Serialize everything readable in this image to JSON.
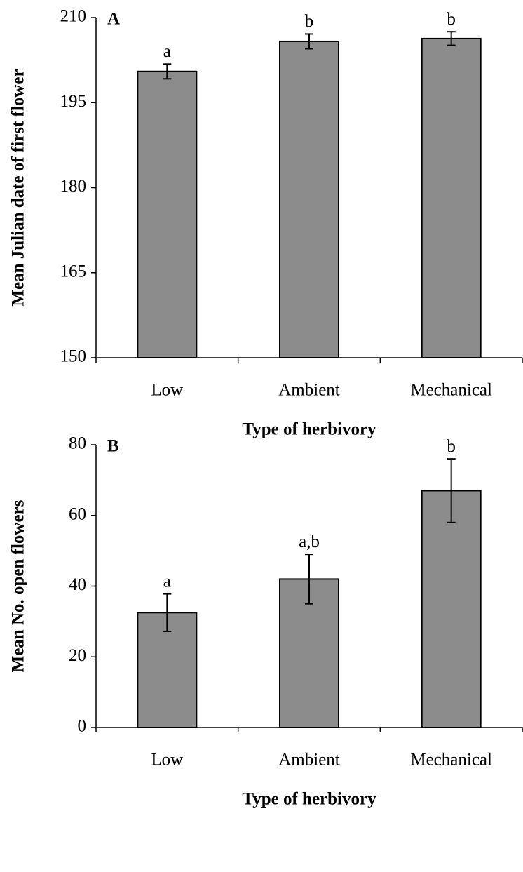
{
  "chart_data": [
    {
      "type": "bar",
      "panel": "A",
      "categories": [
        "Low",
        "Ambient",
        "Mechanical"
      ],
      "values": [
        200.5,
        205.8,
        206.3
      ],
      "errors": [
        1.3,
        1.3,
        1.2
      ],
      "annotations": [
        "a",
        "b",
        "b"
      ],
      "color": "#8c8c8c",
      "ylabel": "Mean Julian date of first flower",
      "xlabel": "Type of herbivory",
      "ylim": [
        150,
        210
      ],
      "yticks": [
        150,
        165,
        180,
        195,
        210
      ]
    },
    {
      "type": "bar",
      "panel": "B",
      "categories": [
        "Low",
        "Ambient",
        "Mechanical"
      ],
      "values": [
        32.5,
        42,
        67
      ],
      "errors": [
        5.3,
        7,
        9
      ],
      "annotations": [
        "a",
        "a,b",
        "b"
      ],
      "color": "#8c8c8c",
      "ylabel": "Mean No. open flowers",
      "xlabel": "Type of herbivory",
      "ylim": [
        0,
        80
      ],
      "yticks": [
        0,
        20,
        40,
        60,
        80
      ]
    }
  ]
}
